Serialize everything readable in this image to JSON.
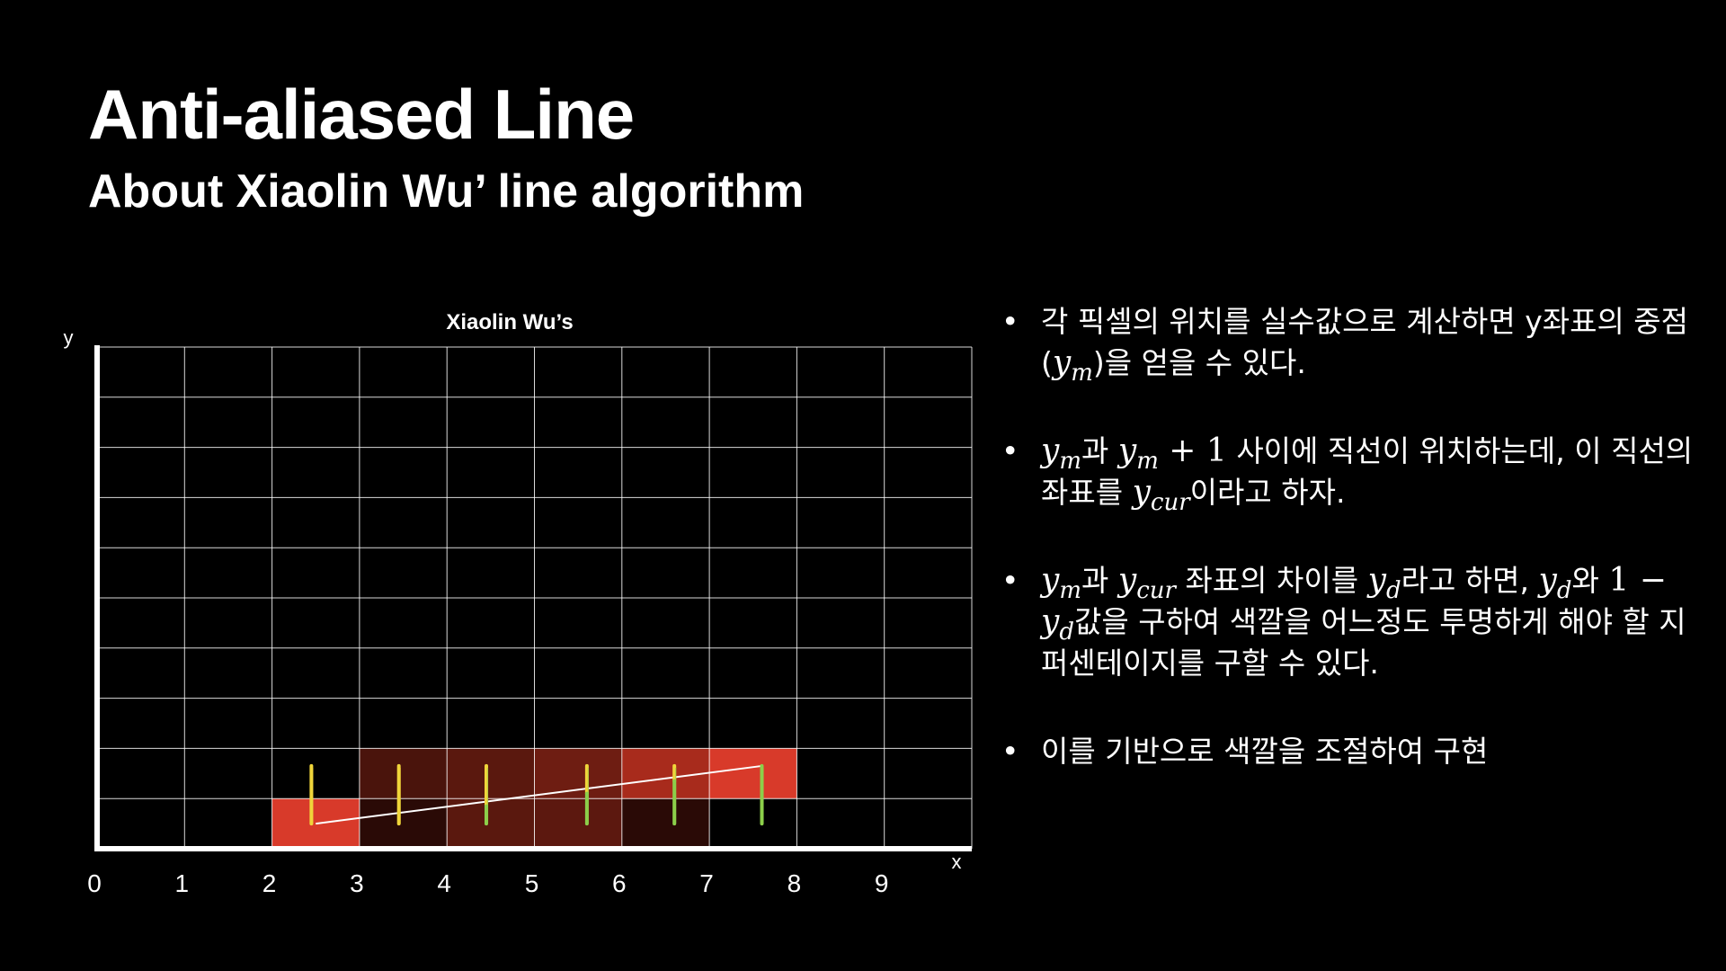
{
  "slide": {
    "title": "Anti-aliased Line",
    "subtitle": "About Xiaolin Wu’ line algorithm"
  },
  "chart_data": {
    "type": "diagram",
    "title": "Xiaolin Wu’s",
    "xlabel": "x",
    "ylabel": "y",
    "x_ticks": [
      "0",
      "1",
      "2",
      "3",
      "4",
      "5",
      "6",
      "7",
      "8",
      "9"
    ],
    "grid_cols": 10,
    "grid_rows": 10,
    "line": {
      "x1": 2.5,
      "y1": 0.5,
      "x2": 7.6,
      "y2": 1.65
    },
    "filled_cells": [
      {
        "col": 2,
        "row": 0,
        "color": "#d83a2a"
      },
      {
        "col": 3,
        "row": 0,
        "color": "#2a0a06"
      },
      {
        "col": 3,
        "row": 1,
        "color": "#4a140c"
      },
      {
        "col": 4,
        "row": 0,
        "color": "#5a180e"
      },
      {
        "col": 4,
        "row": 1,
        "color": "#5a180e"
      },
      {
        "col": 5,
        "row": 0,
        "color": "#5c180f"
      },
      {
        "col": 5,
        "row": 1,
        "color": "#6e1d12"
      },
      {
        "col": 6,
        "row": 0,
        "color": "#2a0a06"
      },
      {
        "col": 6,
        "row": 1,
        "color": "#a82b1c"
      },
      {
        "col": 7,
        "row": 1,
        "color": "#d83a2a"
      }
    ],
    "markers": [
      {
        "x": 2.45,
        "top": 1.65,
        "split": 0.5,
        "upper_color": "#f0d53a",
        "lower_color": "#f0d53a"
      },
      {
        "x": 3.45,
        "top": 1.65,
        "split": 0.5,
        "upper_color": "#f0d53a",
        "lower_color": "#8ccf4a"
      },
      {
        "x": 4.45,
        "top": 1.65,
        "split": 0.85,
        "upper_color": "#f0d53a",
        "lower_color": "#8ccf4a"
      },
      {
        "x": 5.6,
        "top": 1.65,
        "split": 1.1,
        "upper_color": "#f0d53a",
        "lower_color": "#8ccf4a"
      },
      {
        "x": 6.6,
        "top": 1.65,
        "split": 1.35,
        "upper_color": "#f0d53a",
        "lower_color": "#8ccf4a"
      },
      {
        "x": 7.6,
        "top": 1.65,
        "split": 1.65,
        "upper_color": "#8ccf4a",
        "lower_color": "#8ccf4a"
      }
    ],
    "grid_color": "#ffffff",
    "axis_color": "#ffffff"
  },
  "bullets": [
    {
      "parts": [
        {
          "t": "text",
          "v": "각 픽셀의 위치를 실수값으로 계산하면 y좌표의 중점("
        },
        {
          "t": "math",
          "v": "y",
          "sub": "m"
        },
        {
          "t": "text",
          "v": ")을 얻을 수 있다."
        }
      ]
    },
    {
      "parts": [
        {
          "t": "math",
          "v": "y",
          "sub": "m"
        },
        {
          "t": "text",
          "v": "과 "
        },
        {
          "t": "math",
          "v": "y",
          "sub": "m"
        },
        {
          "t": "mathr",
          "v": " + 1"
        },
        {
          "t": "text",
          "v": " 사이에 직선이 위치하는데, 이 직선의 좌표를 "
        },
        {
          "t": "math",
          "v": "y",
          "sub": "cur"
        },
        {
          "t": "text",
          "v": "이라고 하자."
        }
      ]
    },
    {
      "parts": [
        {
          "t": "math",
          "v": "y",
          "sub": "m"
        },
        {
          "t": "text",
          "v": "과 "
        },
        {
          "t": "math",
          "v": "y",
          "sub": "cur"
        },
        {
          "t": "text",
          "v": " 좌표의 차이를 "
        },
        {
          "t": "math",
          "v": "y",
          "sub": "d"
        },
        {
          "t": "text",
          "v": "라고 하면, "
        },
        {
          "t": "math",
          "v": "y",
          "sub": "d"
        },
        {
          "t": "text",
          "v": "와 "
        },
        {
          "t": "mathr",
          "v": "1 − "
        },
        {
          "t": "math",
          "v": "y",
          "sub": "d"
        },
        {
          "t": "text",
          "v": "값을 구하여 색깔을 어느정도 투명하게 해야 할 지 퍼센테이지를 구할 수 있다."
        }
      ]
    },
    {
      "parts": [
        {
          "t": "text",
          "v": "이를 기반으로 색깔을 조절하여 구현"
        }
      ]
    }
  ],
  "bullet_symbol": "•"
}
